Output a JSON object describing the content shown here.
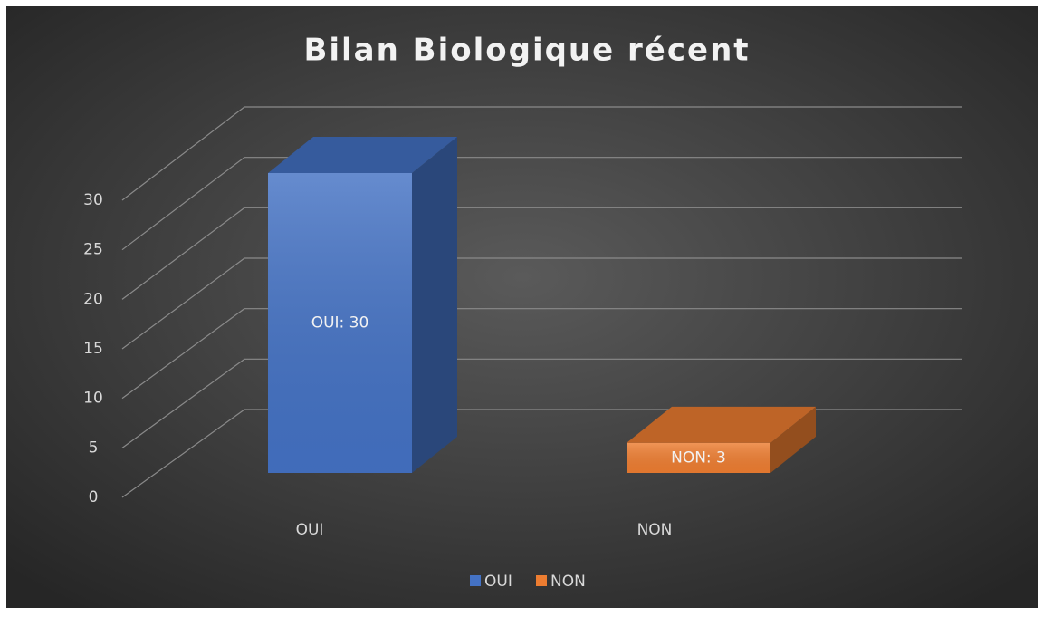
{
  "chart_data": {
    "type": "bar3d",
    "title": "Bilan Biologique récent",
    "categories": [
      "OUI",
      "NON"
    ],
    "values": [
      30,
      3
    ],
    "value_labels": [
      "OUI: 30",
      "NON: 3"
    ],
    "colors": [
      "#4472c4",
      "#ed7d31"
    ],
    "ylim": [
      0,
      30
    ],
    "yticks": [
      0,
      5,
      10,
      15,
      20,
      25,
      30
    ],
    "grid": true,
    "legend": "bottom"
  }
}
